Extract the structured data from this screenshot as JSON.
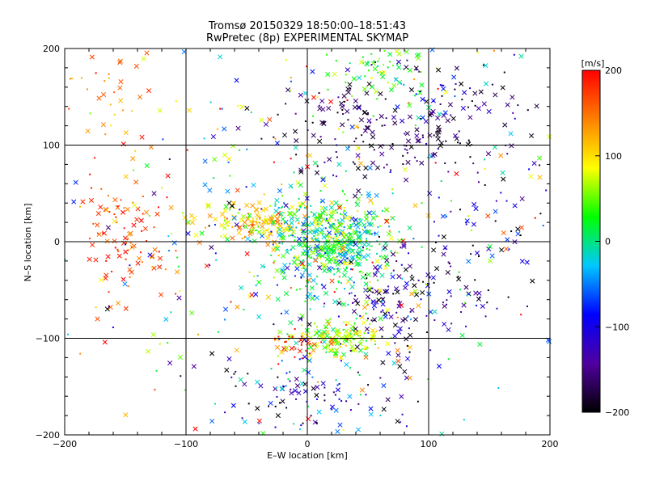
{
  "chart_data": {
    "type": "scatter",
    "title_line1": "Tromsø 20150329 18:50:00–18:51:43",
    "title_line2": "RwPretec (8p) EXPERIMENTAL SKYMAP",
    "xlabel": "E–W location [km]",
    "ylabel": "N–S location [km]",
    "xlim": [
      -200,
      200
    ],
    "ylim": [
      -200,
      200
    ],
    "xticks": [
      "−200",
      "−100",
      "0",
      "100",
      "200"
    ],
    "yticks": [
      "−200",
      "−100",
      "0",
      "100",
      "200"
    ],
    "grid": true,
    "colorbar": {
      "label": "[m/s]",
      "range": [
        -200,
        200
      ],
      "ticks": [
        "200",
        "100",
        "0",
        "−100",
        "−200"
      ],
      "colormap": [
        "#000000",
        "#5000a0",
        "#0000ff",
        "#00c8ff",
        "#00ff00",
        "#ffff00",
        "#ff8000",
        "#ff0000"
      ]
    },
    "clusters": [
      {
        "cx": -150,
        "cy": 0,
        "sx": 20,
        "sy": 30,
        "n": 90,
        "vmean": 170,
        "vsd": 20
      },
      {
        "cx": -170,
        "cy": 150,
        "sx": 25,
        "sy": 35,
        "n": 50,
        "vmean": 140,
        "vsd": 40
      },
      {
        "cx": -40,
        "cy": 20,
        "sx": 25,
        "sy": 10,
        "n": 140,
        "vmean": 105,
        "vsd": 30
      },
      {
        "cx": 20,
        "cy": 0,
        "sx": 25,
        "sy": 25,
        "n": 500,
        "vmean": 10,
        "vsd": 45
      },
      {
        "cx": 25,
        "cy": -100,
        "sx": 20,
        "sy": 10,
        "n": 160,
        "vmean": 70,
        "vsd": 35
      },
      {
        "cx": -5,
        "cy": -105,
        "sx": 8,
        "sy": 8,
        "n": 25,
        "vmean": 190,
        "vsd": 15
      },
      {
        "cx": 60,
        "cy": 180,
        "sx": 20,
        "sy": 15,
        "n": 70,
        "vmean": 40,
        "vsd": 30
      },
      {
        "cx": 65,
        "cy": 115,
        "sx": 50,
        "sy": 25,
        "n": 170,
        "vmean": -170,
        "vsd": 30
      },
      {
        "cx": 75,
        "cy": -60,
        "sx": 35,
        "sy": 30,
        "n": 140,
        "vmean": -160,
        "vsd": 40
      },
      {
        "cx": 120,
        "cy": 150,
        "sx": 40,
        "sy": 40,
        "n": 80,
        "vmean": -120,
        "vsd": 80
      },
      {
        "cx": 150,
        "cy": 30,
        "sx": 35,
        "sy": 60,
        "n": 70,
        "vmean": -150,
        "vsd": 60
      },
      {
        "cx": 0,
        "cy": -160,
        "sx": 40,
        "sy": 25,
        "n": 110,
        "vmean": -130,
        "vsd": 70
      },
      {
        "cx": 0,
        "cy": 0,
        "sx": 110,
        "sy": 110,
        "n": 500,
        "vmean": 30,
        "vsd": 110
      }
    ]
  }
}
